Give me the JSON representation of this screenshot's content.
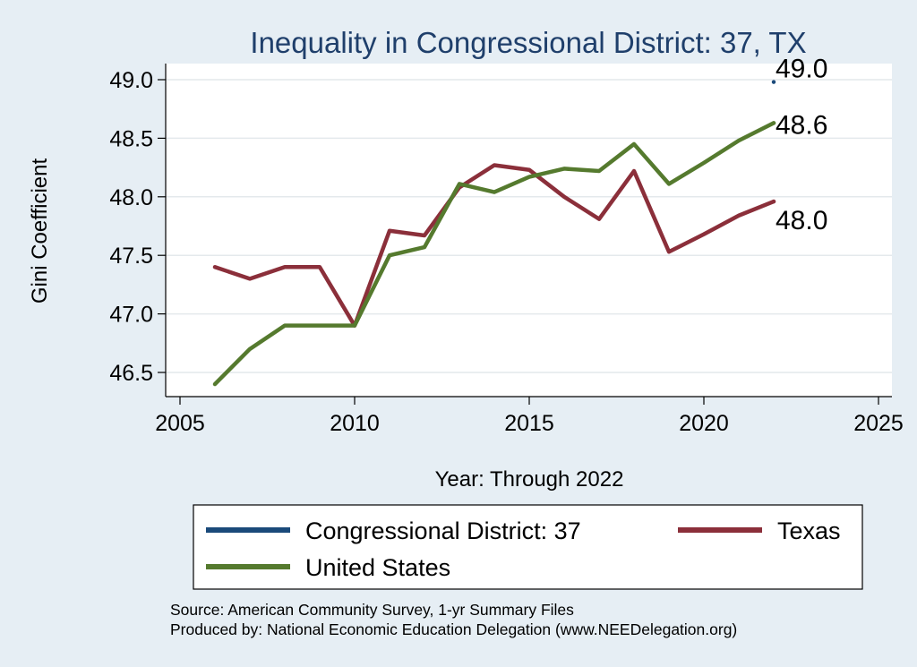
{
  "chart_data": {
    "type": "line",
    "title": "Inequality in Congressional District:  37, TX",
    "xlabel": "Year: Through 2022",
    "ylabel": "Gini Coefficient",
    "xlim": [
      2005,
      2025
    ],
    "ylim": [
      46.35,
      49.15
    ],
    "x_ticks": [
      2005,
      2010,
      2015,
      2020,
      2025
    ],
    "y_ticks": [
      46.5,
      47.0,
      47.5,
      48.0,
      48.5,
      49.0
    ],
    "y_tick_labels": [
      "46.5",
      "47.0",
      "47.5",
      "48.0",
      "48.5",
      "49.0"
    ],
    "grid": true,
    "legend_position": "bottom",
    "series": [
      {
        "name": "Congressional District:  37",
        "color": "#1a4a7a",
        "x": [
          2022
        ],
        "y": [
          48.98
        ],
        "end_label": "49.0"
      },
      {
        "name": "Texas",
        "color": "#8b2f3a",
        "x": [
          2006,
          2007,
          2008,
          2009,
          2010,
          2011,
          2012,
          2013,
          2014,
          2015,
          2016,
          2017,
          2018,
          2019,
          2020,
          2021,
          2022
        ],
        "y": [
          47.4,
          47.3,
          47.4,
          47.4,
          46.9,
          47.71,
          47.67,
          48.08,
          48.27,
          48.23,
          48.0,
          47.81,
          48.22,
          47.53,
          47.68,
          47.84,
          47.96
        ],
        "end_label": "48.0"
      },
      {
        "name": "United States",
        "color": "#557a2e",
        "x": [
          2006,
          2007,
          2008,
          2009,
          2010,
          2011,
          2012,
          2013,
          2014,
          2015,
          2016,
          2017,
          2018,
          2019,
          2020,
          2021,
          2022
        ],
        "y": [
          46.4,
          46.7,
          46.9,
          46.9,
          46.9,
          47.5,
          47.57,
          48.11,
          48.04,
          48.17,
          48.24,
          48.22,
          48.45,
          48.11,
          48.29,
          48.48,
          48.63
        ],
        "end_label": "48.6"
      }
    ],
    "legend_order": [
      0,
      1,
      2
    ]
  },
  "footer": {
    "source": "Source: American Community Survey, 1-yr Summary Files",
    "produced_by": "Produced by: National Economic Education Delegation (www.NEEDelegation.org)"
  }
}
